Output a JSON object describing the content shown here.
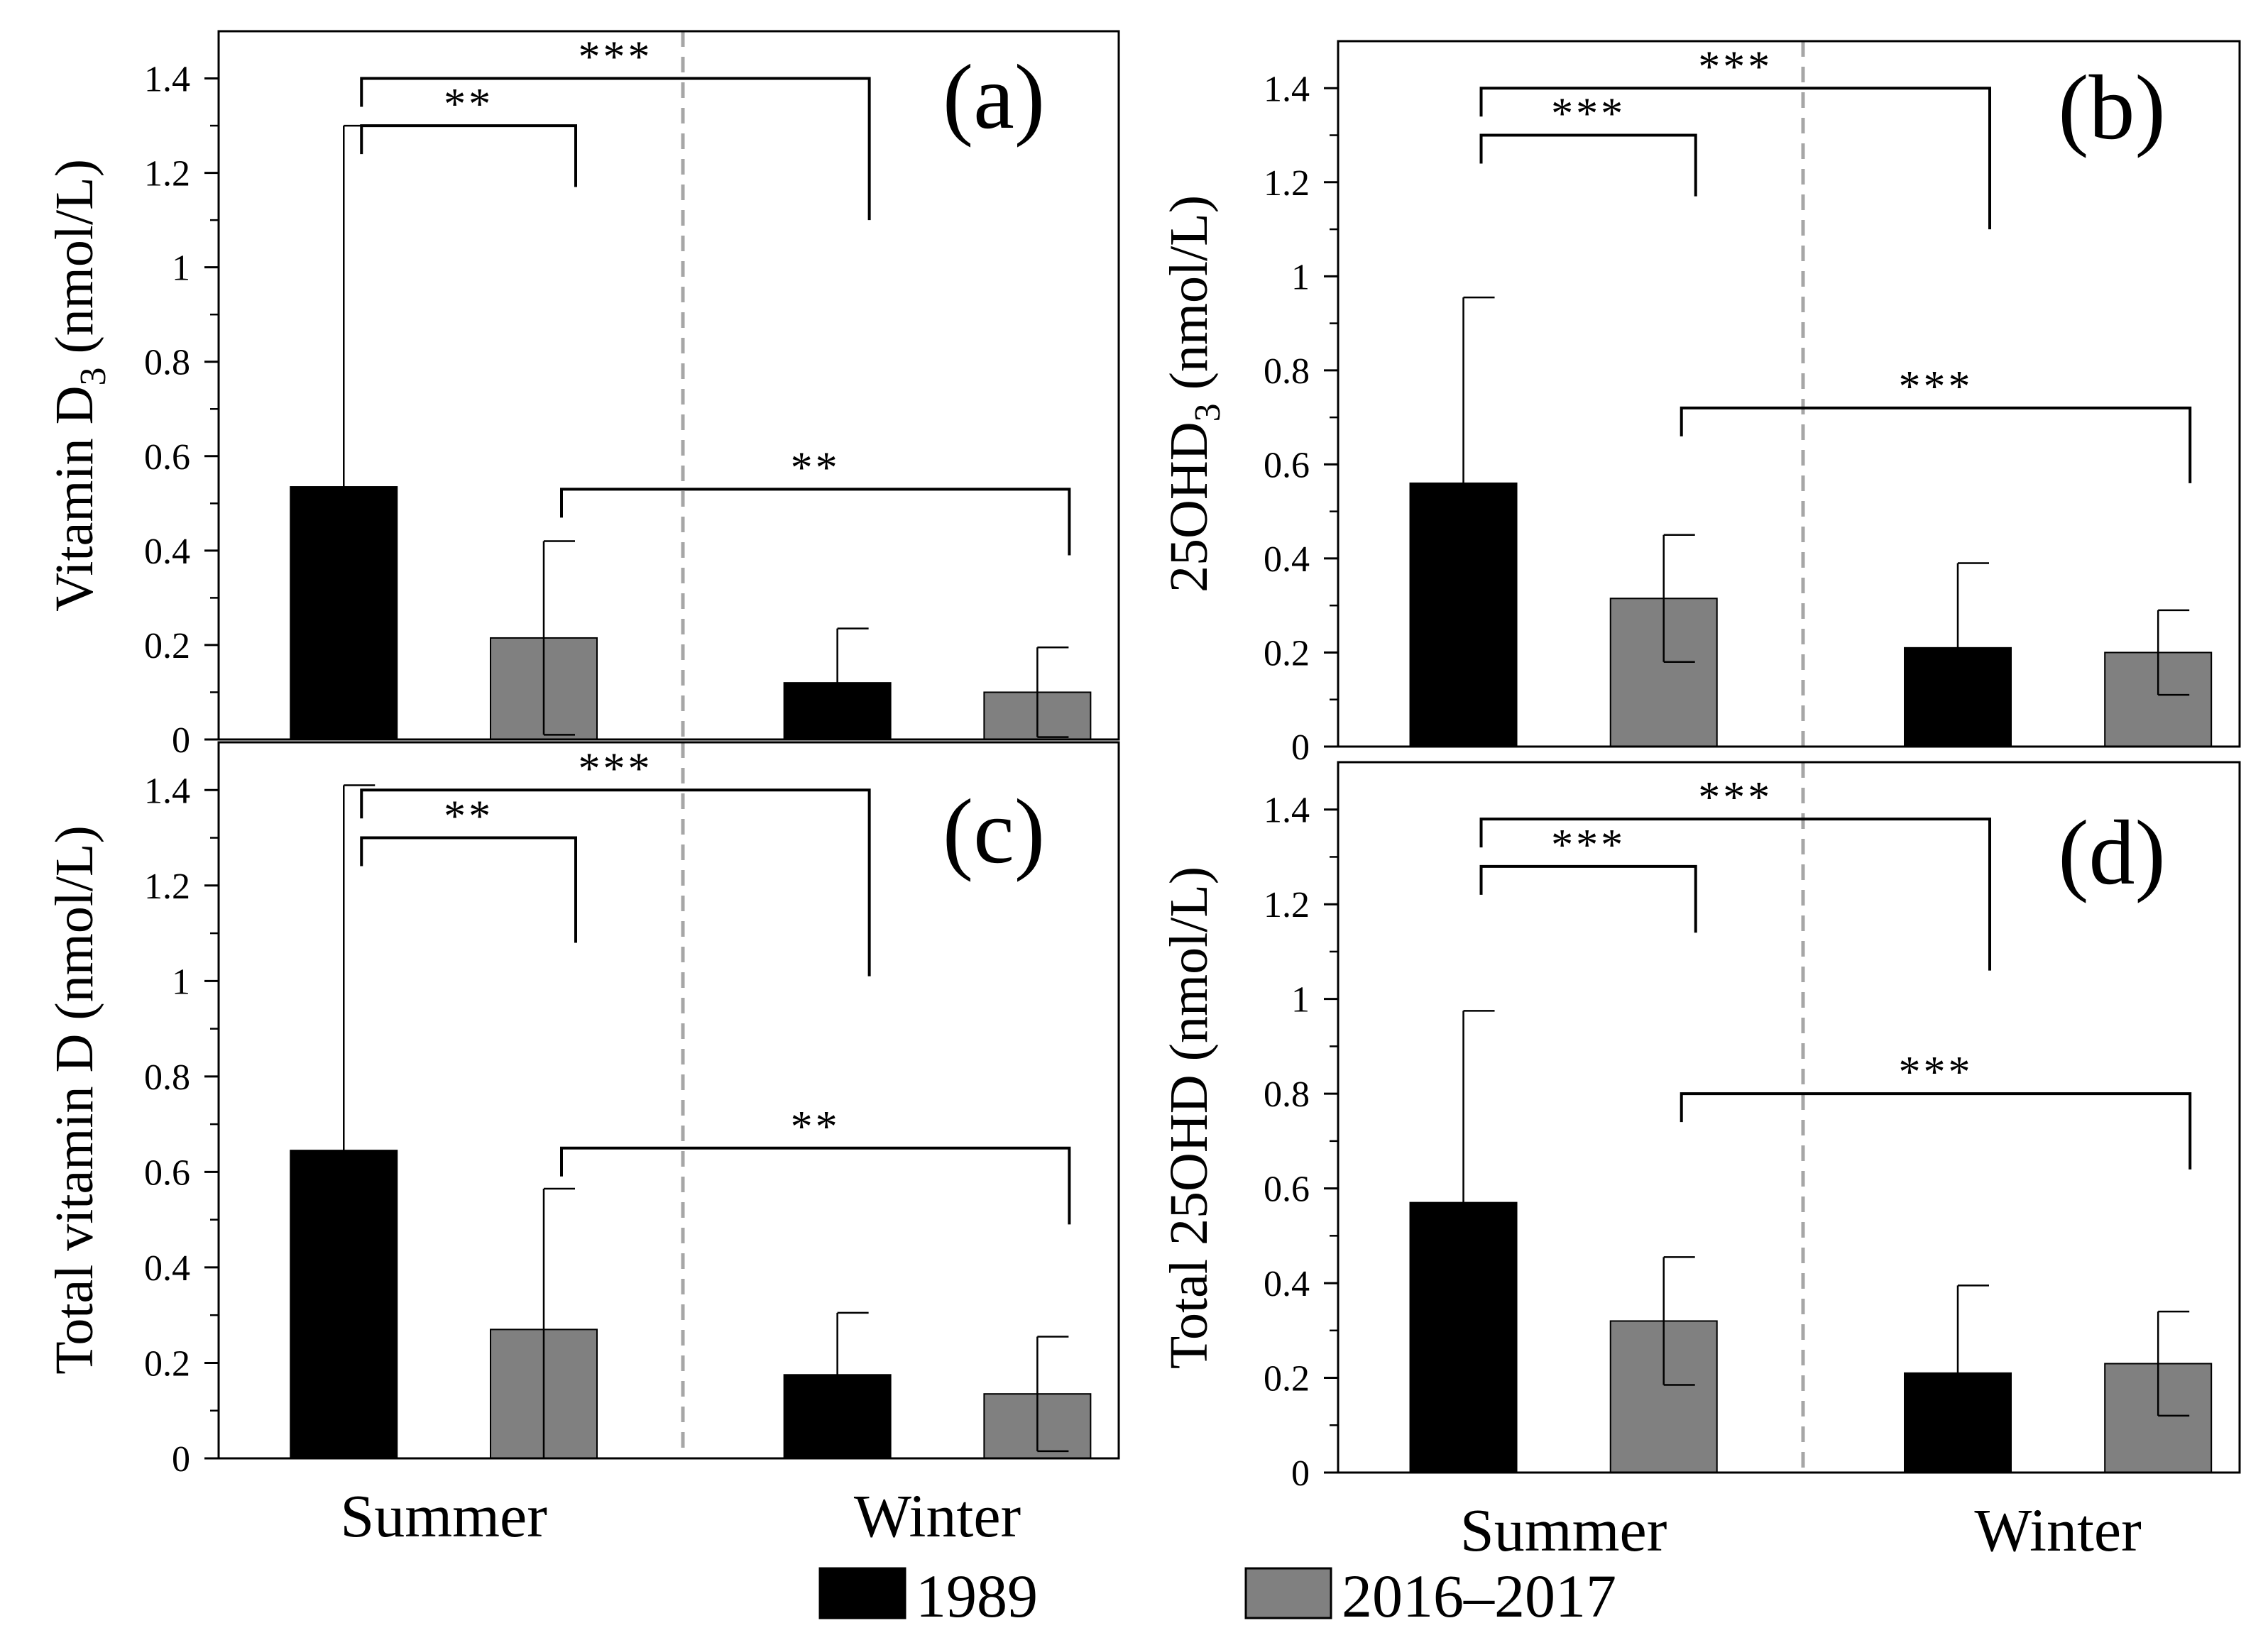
{
  "chart_data": [
    {
      "type": "bar",
      "panel": "(a)",
      "ylabel": "Vitamin D",
      "ylabel_sub": "3",
      "ylabel_unit": " (nmol/L)",
      "ylim": [
        0,
        1.5
      ],
      "yticks": [
        "0",
        "0.2",
        "0.4",
        "0.6",
        "0.8",
        "1",
        "1.2",
        "1.4"
      ],
      "categories": [
        "Summer",
        "Winter"
      ],
      "series": [
        {
          "name": "1989",
          "values": [
            0.535,
            0.12
          ],
          "errors": [
            0.765,
            0.115
          ]
        },
        {
          "name": "2016–2017",
          "values": [
            0.215,
            0.1
          ],
          "errors": [
            0.205,
            0.095
          ]
        }
      ],
      "significance": [
        {
          "from": "Summer 1989",
          "to": "Summer 2016–2017",
          "label": "**"
        },
        {
          "from": "Summer 1989",
          "to": "Winter 1989",
          "label": "***"
        },
        {
          "from": "Summer 2016–2017",
          "to": "Winter 2016–2017",
          "label": "**"
        }
      ]
    },
    {
      "type": "bar",
      "panel": "(b)",
      "ylabel": "25OHD",
      "ylabel_sub": "3",
      "ylabel_unit": " (nmol/L)",
      "ylim": [
        0,
        1.5
      ],
      "yticks": [
        "0",
        "0.2",
        "0.4",
        "0.6",
        "0.8",
        "1",
        "1.2",
        "1.4"
      ],
      "categories": [
        "Summer",
        "Winter"
      ],
      "series": [
        {
          "name": "1989",
          "values": [
            0.56,
            0.21
          ],
          "errors": [
            0.395,
            0.18
          ]
        },
        {
          "name": "2016–2017",
          "values": [
            0.315,
            0.2
          ],
          "errors": [
            0.135,
            0.09
          ]
        }
      ],
      "significance": [
        {
          "from": "Summer 1989",
          "to": "Summer 2016–2017",
          "label": "***"
        },
        {
          "from": "Summer 1989",
          "to": "Winter 1989",
          "label": "***"
        },
        {
          "from": "Summer 2016–2017",
          "to": "Winter 2016–2017",
          "label": "***"
        }
      ]
    },
    {
      "type": "bar",
      "panel": "(c)",
      "ylabel": "Total vitamin D",
      "ylabel_sub": "",
      "ylabel_unit": " (nmol/L)",
      "ylim": [
        0,
        1.5
      ],
      "yticks": [
        "0",
        "0.2",
        "0.4",
        "0.6",
        "0.8",
        "1",
        "1.2",
        "1.4"
      ],
      "categories": [
        "Summer",
        "Winter"
      ],
      "series": [
        {
          "name": "1989",
          "values": [
            0.645,
            0.175
          ],
          "errors": [
            0.765,
            0.13
          ]
        },
        {
          "name": "2016–2017",
          "values": [
            0.27,
            0.135
          ],
          "errors": [
            0.295,
            0.12
          ]
        }
      ],
      "significance": [
        {
          "from": "Summer 1989",
          "to": "Summer 2016–2017",
          "label": "**"
        },
        {
          "from": "Summer 1989",
          "to": "Winter 1989",
          "label": "***"
        },
        {
          "from": "Summer 2016–2017",
          "to": "Winter 2016–2017",
          "label": "**"
        }
      ]
    },
    {
      "type": "bar",
      "panel": "(d)",
      "ylabel": "Total 25OHD",
      "ylabel_sub": "",
      "ylabel_unit": " (nmol/L)",
      "ylim": [
        0,
        1.5
      ],
      "yticks": [
        "0",
        "0.2",
        "0.4",
        "0.6",
        "0.8",
        "1",
        "1.2",
        "1.4"
      ],
      "categories": [
        "Summer",
        "Winter"
      ],
      "series": [
        {
          "name": "1989",
          "values": [
            0.57,
            0.21
          ],
          "errors": [
            0.405,
            0.185
          ]
        },
        {
          "name": "2016–2017",
          "values": [
            0.32,
            0.23
          ],
          "errors": [
            0.135,
            0.11
          ]
        }
      ],
      "significance": [
        {
          "from": "Summer 1989",
          "to": "Summer 2016–2017",
          "label": "***"
        },
        {
          "from": "Summer 1989",
          "to": "Winter 1989",
          "label": "***"
        },
        {
          "from": "Summer 2016–2017",
          "to": "Winter 2016–2017",
          "label": "***"
        }
      ]
    }
  ],
  "legend": [
    {
      "label": "1989",
      "color": "#000000"
    },
    {
      "label": "2016–2017",
      "color": "#808080"
    }
  ],
  "colors": {
    "bar_1989": "#000000",
    "bar_2016": "#808080",
    "divider": "#a6a6a6"
  },
  "grid": false,
  "legend_position": "bottom-center"
}
